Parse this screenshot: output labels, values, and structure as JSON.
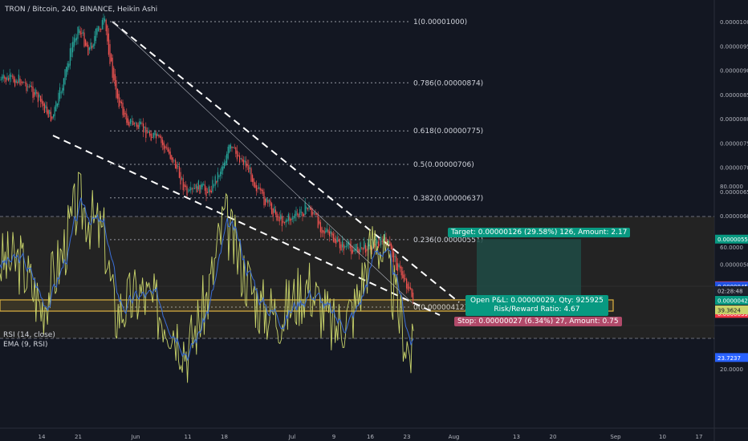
{
  "header": {
    "symbol_title": "TRON / Bitcoin, 240, BINANCE, Heikin Ashi"
  },
  "rsi_panel": {
    "title": "RSI (14, close)",
    "ema_title": "EMA (9, RSI)"
  },
  "fib_levels": [
    {
      "text": "1(0.00001000)",
      "value": 1e-05
    },
    {
      "text": "0.786(0.00000874)",
      "value": 8.74e-06
    },
    {
      "text": "0.618(0.00000775)",
      "value": 7.75e-06
    },
    {
      "text": "0.5(0.00000706)",
      "value": 7.06e-06
    },
    {
      "text": "0.382(0.00000637)",
      "value": 6.37e-06
    },
    {
      "text": "0.236(0.00000551)",
      "value": 5.51e-06
    },
    {
      "text": "0(0.00000412)",
      "value": 4.12e-06
    }
  ],
  "position": {
    "target_text": "Target: 0.00000126 (29.58%) 126, Amount: 2.17",
    "pnl_text": "Open P&L: 0.00000029, Qty: 925925",
    "rr_text": "Risk/Reward Ratio: 4.67",
    "stop_text": "Stop: 0.00000027 (6.34%) 27, Amount: 0.75",
    "entry": 4.26e-06,
    "target": 5.52e-06,
    "stop": 3.99e-06
  },
  "price_axis": {
    "ticks": [
      "0.00001000",
      "0.00000950",
      "0.00000900",
      "0.00000850",
      "0.00000800",
      "0.00000750",
      "0.00000700",
      "0.00000650",
      "0.00000600",
      "0.00000500"
    ],
    "tick_values": [
      1e-05,
      9.5e-06,
      9e-06,
      8.5e-06,
      8e-06,
      7.5e-06,
      7e-06,
      6.5e-06,
      6e-06,
      5e-06
    ],
    "labels": [
      {
        "text": "0.00000552",
        "value": 5.52e-06,
        "bg": "#089981",
        "fg": "#ffffff"
      },
      {
        "text": "0.00000456",
        "value": 4.56e-06,
        "bg": "#f23645",
        "fg": "#ffffff"
      },
      {
        "text": "0.00000455",
        "value": 4.55e-06,
        "bg": "#1e53e5",
        "fg": "#ffffff"
      },
      {
        "text": "02:28:48",
        "value": 4.46e-06,
        "bg": "#1e222d",
        "fg": "#d1d4dc"
      },
      {
        "text": "0.00000426",
        "value": 4.26e-06,
        "bg": "#089981",
        "fg": "#ffffff"
      },
      {
        "text": "0.00000399",
        "value": 3.99e-06,
        "bg": "#f23645",
        "fg": "#ffffff"
      }
    ]
  },
  "rsi_axis": {
    "ticks": [
      "80.0000",
      "60.0000",
      "20.0000"
    ],
    "tick_values": [
      80,
      60,
      20
    ],
    "labels": [
      {
        "text": "39.3624",
        "value": 39.36,
        "bg": "#c9d46b",
        "fg": "#131722"
      },
      {
        "text": "23.7237",
        "value": 23.72,
        "bg": "#2962ff",
        "fg": "#ffffff"
      }
    ]
  },
  "time_axis": {
    "labels": [
      "14",
      "21",
      "Jun",
      "11",
      "18",
      "Jul",
      "9",
      "16",
      "23",
      "Aug",
      "13",
      "20",
      "Sep",
      "10",
      "17"
    ]
  },
  "colors": {
    "background": "#131722",
    "up": "#26a69a",
    "down": "#ef5350",
    "target_fill": "#1f4b45",
    "stop_fill": "#5a2430",
    "zone": "#e0b341",
    "rsi_line": "#c9d46b",
    "ema_line": "#3b6fd8",
    "grid": "#2a2e39"
  },
  "chart_data": {
    "type": "candlestick",
    "title": "TRON / Bitcoin, 240, BINANCE, Heikin Ashi",
    "x_labels": [
      "14",
      "21",
      "Jun",
      "11",
      "18",
      "Jul",
      "9",
      "16",
      "23",
      "Aug",
      "13",
      "20",
      "Sep",
      "10",
      "17"
    ],
    "close_path": [
      {
        "t": "May 10",
        "v": 8.8e-06
      },
      {
        "t": "May 12",
        "v": 8.6e-06
      },
      {
        "t": "May 14",
        "v": 8.3e-06
      },
      {
        "t": "May 16",
        "v": 8e-06
      },
      {
        "t": "May 18",
        "v": 8.7e-06
      },
      {
        "t": "May 20",
        "v": 9.6e-06
      },
      {
        "t": "May 21",
        "v": 9.9e-06
      },
      {
        "t": "May 23",
        "v": 9.4e-06
      },
      {
        "t": "May 25",
        "v": 9.9e-06
      },
      {
        "t": "May 26",
        "v": 1e-05
      },
      {
        "t": "May 28",
        "v": 8.6e-06
      },
      {
        "t": "May 30",
        "v": 8e-06
      },
      {
        "t": "Jun 2",
        "v": 7.8e-06
      },
      {
        "t": "Jun 5",
        "v": 7.6e-06
      },
      {
        "t": "Jun 8",
        "v": 7.2e-06
      },
      {
        "t": "Jun 11",
        "v": 6.4e-06
      },
      {
        "t": "Jun 13",
        "v": 6.6e-06
      },
      {
        "t": "Jun 15",
        "v": 6.5e-06
      },
      {
        "t": "Jun 17",
        "v": 6.9e-06
      },
      {
        "t": "Jun 19",
        "v": 7.4e-06
      },
      {
        "t": "Jun 22",
        "v": 7.1e-06
      },
      {
        "t": "Jun 25",
        "v": 6.4e-06
      },
      {
        "t": "Jun 29",
        "v": 5.9e-06
      },
      {
        "t": "Jul 2",
        "v": 6e-06
      },
      {
        "t": "Jul 4",
        "v": 6.2e-06
      },
      {
        "t": "Jul 7",
        "v": 5.7e-06
      },
      {
        "t": "Jul 10",
        "v": 5.4e-06
      },
      {
        "t": "Jul 13",
        "v": 5.3e-06
      },
      {
        "t": "Jul 16",
        "v": 5.4e-06
      },
      {
        "t": "Jul 19",
        "v": 5.5e-06
      },
      {
        "t": "Jul 21",
        "v": 5e-06
      },
      {
        "t": "Jul 23",
        "v": 4.6e-06
      },
      {
        "t": "Jul 24",
        "v": 4.3e-06
      },
      {
        "t": "Jul 25",
        "v": 4.56e-06
      }
    ],
    "fib_retracement": [
      1e-05,
      8.74e-06,
      7.75e-06,
      7.06e-06,
      6.37e-06,
      5.51e-06,
      4.12e-06
    ],
    "rsi_series": [
      {
        "t": "May 10",
        "v": 55
      },
      {
        "t": "May 14",
        "v": 40
      },
      {
        "t": "May 18",
        "v": 58
      },
      {
        "t": "May 21",
        "v": 75
      },
      {
        "t": "May 26",
        "v": 63
      },
      {
        "t": "May 28",
        "v": 38
      },
      {
        "t": "Jun 2",
        "v": 45
      },
      {
        "t": "Jun 8",
        "v": 35
      },
      {
        "t": "Jun 11",
        "v": 26
      },
      {
        "t": "Jun 15",
        "v": 45
      },
      {
        "t": "Jun 18",
        "v": 70
      },
      {
        "t": "Jun 21",
        "v": 55
      },
      {
        "t": "Jun 25",
        "v": 40
      },
      {
        "t": "Jun 29",
        "v": 38
      },
      {
        "t": "Jul 4",
        "v": 48
      },
      {
        "t": "Jul 9",
        "v": 33
      },
      {
        "t": "Jul 13",
        "v": 40
      },
      {
        "t": "Jul 17",
        "v": 65
      },
      {
        "t": "Jul 20",
        "v": 48
      },
      {
        "t": "Jul 23",
        "v": 28
      },
      {
        "t": "Jul 24",
        "v": 24
      },
      {
        "t": "Jul 25",
        "v": 39.36
      }
    ],
    "rsi_levels": [
      70,
      30
    ],
    "y_range": [
      3.8e-06,
      1.04e-05
    ]
  }
}
